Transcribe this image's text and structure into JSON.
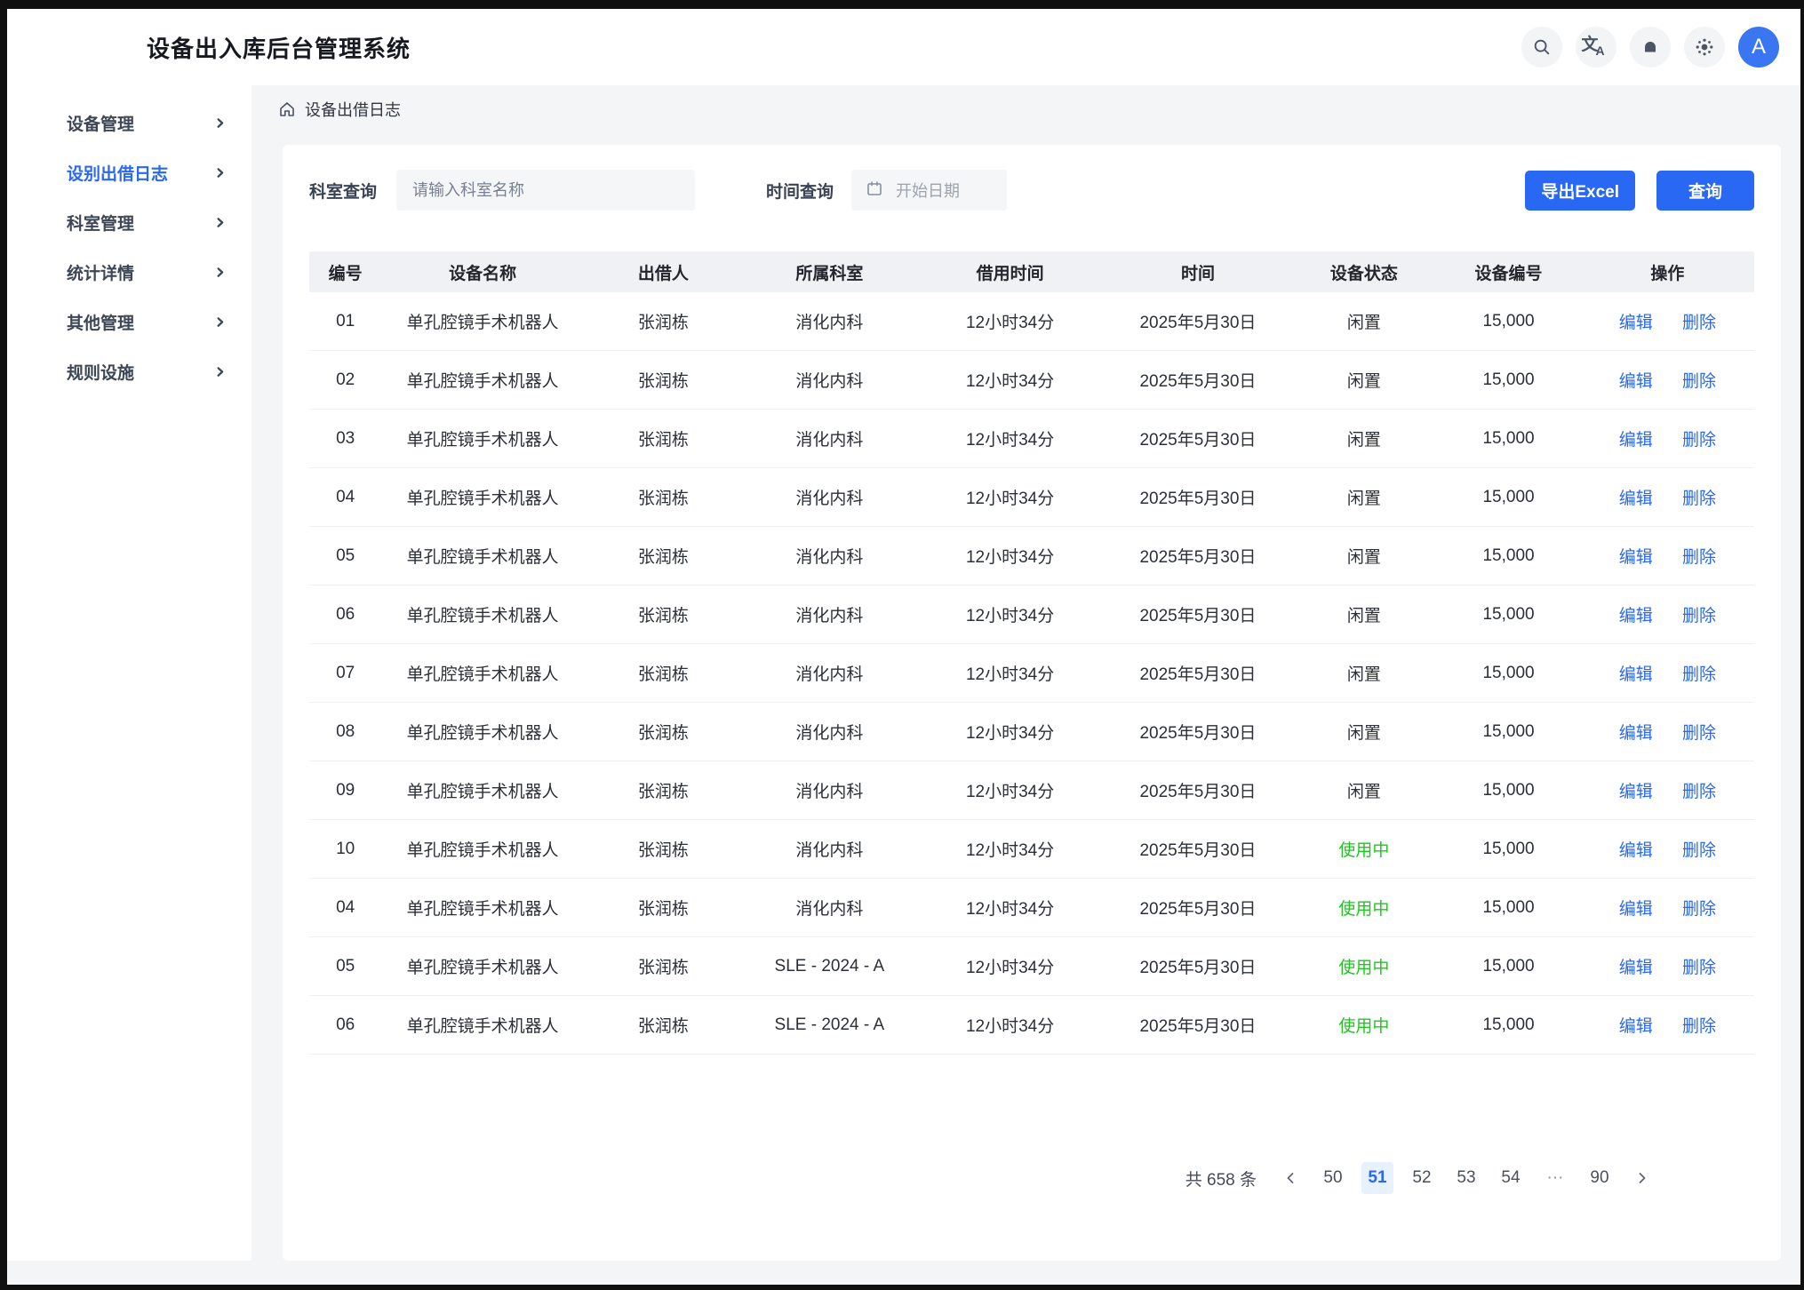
{
  "topbar": {
    "title": "设备出入库后台管理系统",
    "icons": [
      "search-icon",
      "translate-icon",
      "notification-icon",
      "theme-icon"
    ],
    "avatar_letter": "A"
  },
  "sidebar": {
    "items": [
      {
        "label": "设备管理",
        "active": false
      },
      {
        "label": "设别出借日志",
        "active": true
      },
      {
        "label": "科室管理",
        "active": false
      },
      {
        "label": "统计详情",
        "active": false
      },
      {
        "label": "其他管理",
        "active": false
      },
      {
        "label": "规则设施",
        "active": false
      }
    ]
  },
  "breadcrumb": {
    "icon": "home-icon",
    "label": "设备出借日志"
  },
  "filters": {
    "dept_label": "科室查询",
    "dept_placeholder": "请输入科室名称",
    "time_label": "时间查询",
    "date_placeholder": "开始日期",
    "export_label": "导出Excel",
    "query_label": "查询"
  },
  "table": {
    "columns": [
      "编号",
      "设备名称",
      "出借人",
      "所属科室",
      "借用时间",
      "时间",
      "设备状态",
      "设备编号",
      "操作"
    ],
    "edit_label": "编辑",
    "delete_label": "删除",
    "rows": [
      {
        "no": "01",
        "name": "单孔腔镜手术机器人",
        "borrower": "张润栋",
        "dept": "消化内科",
        "duration": "12小时34分",
        "date": "2025年5月30日",
        "status": "闲置",
        "status_type": "idle",
        "code": "15,000"
      },
      {
        "no": "02",
        "name": "单孔腔镜手术机器人",
        "borrower": "张润栋",
        "dept": "消化内科",
        "duration": "12小时34分",
        "date": "2025年5月30日",
        "status": "闲置",
        "status_type": "idle",
        "code": "15,000"
      },
      {
        "no": "03",
        "name": "单孔腔镜手术机器人",
        "borrower": "张润栋",
        "dept": "消化内科",
        "duration": "12小时34分",
        "date": "2025年5月30日",
        "status": "闲置",
        "status_type": "idle",
        "code": "15,000"
      },
      {
        "no": "04",
        "name": "单孔腔镜手术机器人",
        "borrower": "张润栋",
        "dept": "消化内科",
        "duration": "12小时34分",
        "date": "2025年5月30日",
        "status": "闲置",
        "status_type": "idle",
        "code": "15,000"
      },
      {
        "no": "05",
        "name": "单孔腔镜手术机器人",
        "borrower": "张润栋",
        "dept": "消化内科",
        "duration": "12小时34分",
        "date": "2025年5月30日",
        "status": "闲置",
        "status_type": "idle",
        "code": "15,000"
      },
      {
        "no": "06",
        "name": "单孔腔镜手术机器人",
        "borrower": "张润栋",
        "dept": "消化内科",
        "duration": "12小时34分",
        "date": "2025年5月30日",
        "status": "闲置",
        "status_type": "idle",
        "code": "15,000"
      },
      {
        "no": "07",
        "name": "单孔腔镜手术机器人",
        "borrower": "张润栋",
        "dept": "消化内科",
        "duration": "12小时34分",
        "date": "2025年5月30日",
        "status": "闲置",
        "status_type": "idle",
        "code": "15,000"
      },
      {
        "no": "08",
        "name": "单孔腔镜手术机器人",
        "borrower": "张润栋",
        "dept": "消化内科",
        "duration": "12小时34分",
        "date": "2025年5月30日",
        "status": "闲置",
        "status_type": "idle",
        "code": "15,000"
      },
      {
        "no": "09",
        "name": "单孔腔镜手术机器人",
        "borrower": "张润栋",
        "dept": "消化内科",
        "duration": "12小时34分",
        "date": "2025年5月30日",
        "status": "闲置",
        "status_type": "idle",
        "code": "15,000"
      },
      {
        "no": "10",
        "name": "单孔腔镜手术机器人",
        "borrower": "张润栋",
        "dept": "消化内科",
        "duration": "12小时34分",
        "date": "2025年5月30日",
        "status": "使用中",
        "status_type": "in_use",
        "code": "15,000"
      },
      {
        "no": "04",
        "name": "单孔腔镜手术机器人",
        "borrower": "张润栋",
        "dept": "消化内科",
        "duration": "12小时34分",
        "date": "2025年5月30日",
        "status": "使用中",
        "status_type": "in_use",
        "code": "15,000"
      },
      {
        "no": "05",
        "name": "单孔腔镜手术机器人",
        "borrower": "张润栋",
        "dept": "SLE - 2024 - A",
        "duration": "12小时34分",
        "date": "2025年5月30日",
        "status": "使用中",
        "status_type": "in_use",
        "code": "15,000"
      },
      {
        "no": "06",
        "name": "单孔腔镜手术机器人",
        "borrower": "张润栋",
        "dept": "SLE - 2024 - A",
        "duration": "12小时34分",
        "date": "2025年5月30日",
        "status": "使用中",
        "status_type": "in_use",
        "code": "15,000"
      }
    ]
  },
  "pagination": {
    "total_label": "共 658 条",
    "pages": [
      "50",
      "51",
      "52",
      "53",
      "54",
      "···",
      "90"
    ],
    "active_page": "51"
  },
  "colors": {
    "accent_blue": "#2968f3",
    "link_blue": "#2968f3",
    "status_green": "#1ec71e",
    "avatar_blue": "#3a76f1"
  }
}
